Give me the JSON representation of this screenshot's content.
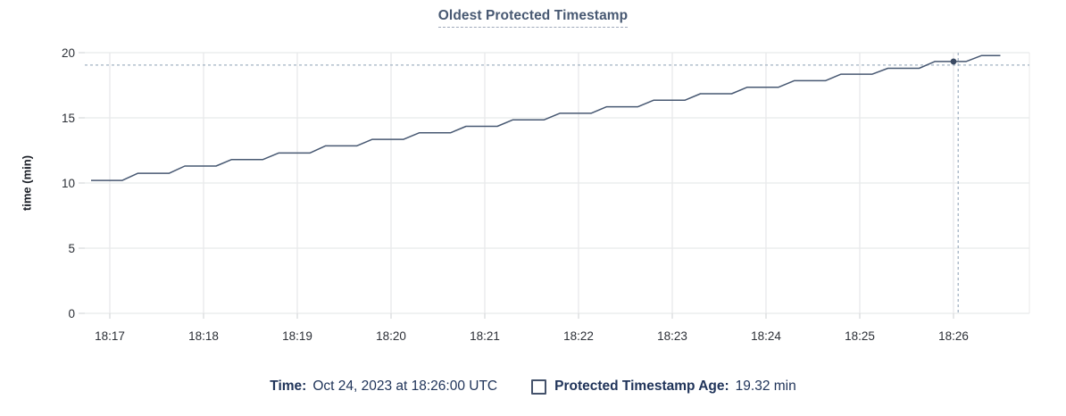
{
  "title": "Oldest Protected Timestamp",
  "legend": {
    "time_label": "Time:",
    "time_value": "Oct 24, 2023 at 18:26:00 UTC",
    "series_label": "Protected Timestamp Age:",
    "series_value": "19.32 min"
  },
  "colors": {
    "background": "#FFFFFF",
    "title_text": "#475872",
    "title_underline": "#9FA9BA",
    "line": "#475872",
    "point": "#3A4A63",
    "grid": "#E8E9EA",
    "tick": "#D9DBDD",
    "axis_text": "#2B2F36",
    "axis_title_text": "#1B1F27",
    "legend_text": "#20345A",
    "checkbox_border": "#44526B",
    "crosshair": "#A3B3C3"
  },
  "chart_data": {
    "type": "line",
    "title": "Oldest Protected Timestamp",
    "xlabel": "",
    "ylabel": "time (min)",
    "ylim": [
      0,
      20
    ],
    "y_ticks": [
      0,
      5,
      10,
      15,
      20
    ],
    "x_ticks": [
      "18:17",
      "18:18",
      "18:19",
      "18:20",
      "18:21",
      "18:22",
      "18:23",
      "18:24",
      "18:25",
      "18:26"
    ],
    "x_unit": "seconds after 18:17:00",
    "grid": true,
    "legend_position": "bottom",
    "series": [
      {
        "name": "Protected Timestamp Age",
        "unit": "min",
        "points": [
          [
            -12,
            10.2
          ],
          [
            8,
            10.2
          ],
          [
            18,
            10.75
          ],
          [
            38,
            10.75
          ],
          [
            48,
            11.3
          ],
          [
            68,
            11.3
          ],
          [
            78,
            11.8
          ],
          [
            98,
            11.8
          ],
          [
            108,
            12.3
          ],
          [
            128,
            12.3
          ],
          [
            138,
            12.85
          ],
          [
            158,
            12.85
          ],
          [
            168,
            13.35
          ],
          [
            188,
            13.35
          ],
          [
            198,
            13.85
          ],
          [
            218,
            13.85
          ],
          [
            228,
            14.35
          ],
          [
            248,
            14.35
          ],
          [
            258,
            14.85
          ],
          [
            278,
            14.85
          ],
          [
            288,
            15.35
          ],
          [
            308,
            15.35
          ],
          [
            318,
            15.85
          ],
          [
            338,
            15.85
          ],
          [
            348,
            16.35
          ],
          [
            368,
            16.35
          ],
          [
            378,
            16.85
          ],
          [
            398,
            16.85
          ],
          [
            408,
            17.35
          ],
          [
            428,
            17.35
          ],
          [
            438,
            17.85
          ],
          [
            458,
            17.85
          ],
          [
            468,
            18.35
          ],
          [
            488,
            18.35
          ],
          [
            498,
            18.8
          ],
          [
            518,
            18.8
          ],
          [
            528,
            19.32
          ],
          [
            548,
            19.32
          ],
          [
            558,
            19.78
          ],
          [
            570,
            19.78
          ]
        ]
      }
    ],
    "hover_point": {
      "t_seconds": 540,
      "value": 19.32,
      "time": "18:26:00",
      "value_label": "19.32 min"
    },
    "crosshair": {
      "t_seconds": 543,
      "y_value": 19.05
    }
  }
}
